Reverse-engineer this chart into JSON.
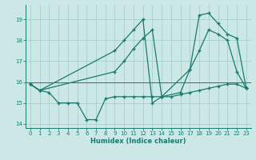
{
  "background_color": "#cce8e6",
  "grid_color": "#a8d0cc",
  "line_color": "#1a7a6e",
  "xlabel": "Humidex (Indice chaleur)",
  "xlim": [
    -0.5,
    23.5
  ],
  "ylim": [
    13.8,
    19.7
  ],
  "yticks": [
    14,
    15,
    16,
    17,
    18,
    19
  ],
  "xticks": [
    0,
    1,
    2,
    3,
    4,
    5,
    6,
    7,
    8,
    9,
    10,
    11,
    12,
    13,
    14,
    15,
    16,
    17,
    18,
    19,
    20,
    21,
    22,
    23
  ],
  "hline_y": 16.0,
  "line1_x": [
    0,
    1,
    2,
    3,
    4,
    5,
    6,
    7,
    8,
    9,
    10,
    11,
    12,
    13,
    14,
    15,
    16,
    17,
    18,
    19,
    20,
    21,
    22,
    23
  ],
  "line1_y": [
    15.9,
    15.6,
    15.5,
    15.0,
    15.0,
    15.0,
    14.2,
    14.2,
    15.2,
    15.3,
    15.3,
    15.3,
    15.3,
    15.3,
    15.3,
    15.3,
    15.4,
    15.5,
    15.6,
    15.7,
    15.8,
    15.9,
    15.9,
    15.7
  ],
  "line2_x": [
    0,
    1,
    9,
    10,
    11,
    12,
    13,
    14,
    17,
    18,
    19,
    20,
    21,
    22,
    23
  ],
  "line2_y": [
    15.9,
    15.6,
    17.5,
    18.0,
    18.5,
    19.0,
    15.0,
    15.3,
    16.6,
    19.2,
    19.3,
    18.8,
    18.3,
    18.1,
    15.7
  ],
  "line3_x": [
    0,
    1,
    9,
    10,
    11,
    12,
    13,
    14,
    16,
    17,
    18,
    19,
    20,
    21,
    22,
    23
  ],
  "line3_y": [
    15.9,
    15.6,
    16.5,
    17.0,
    17.6,
    18.1,
    18.5,
    15.3,
    15.5,
    16.6,
    17.5,
    18.5,
    18.3,
    18.0,
    16.5,
    15.7
  ]
}
